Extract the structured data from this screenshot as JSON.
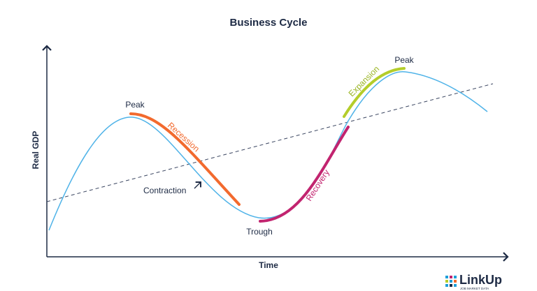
{
  "title": "Business Cycle",
  "axes": {
    "y_label": "Real GDP",
    "x_label": "Time"
  },
  "annotations": {
    "peak_1": "Peak",
    "recession": "Recession",
    "contraction": "Contraction",
    "trough": "Trough",
    "recovery": "Recovery",
    "expansion": "Expansion",
    "peak_2": "Peak"
  },
  "logo": {
    "name": "LinkUp",
    "tagline": "JOB MARKET DATA"
  }
}
